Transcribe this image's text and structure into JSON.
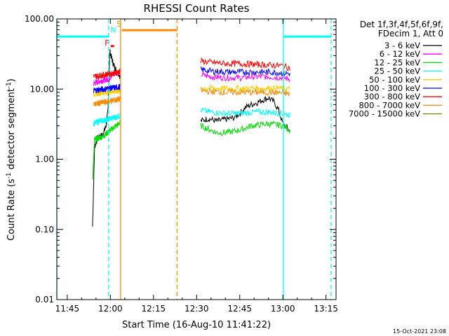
{
  "chart_data": {
    "type": "line",
    "title": "RHESSI Count Rates",
    "xlabel": "Start Time (16-Aug-10 11:41:22)",
    "ylabel_main": "Count Rate (s",
    "ylabel_sup1": "-1",
    "ylabel_mid": " detector segment",
    "ylabel_sup2": "-1",
    "ylabel_end": ")",
    "ylog": true,
    "xlim_minutes": [
      701.37,
      798.5
    ],
    "ylim": [
      0.01,
      100
    ],
    "x_ticks": [
      {
        "value": 705,
        "label": "11:45"
      },
      {
        "value": 720,
        "label": "12:00"
      },
      {
        "value": 735,
        "label": "12:15"
      },
      {
        "value": 750,
        "label": "12:30"
      },
      {
        "value": 765,
        "label": "12:45"
      },
      {
        "value": 780,
        "label": "13:00"
      },
      {
        "value": 795,
        "label": "13:15"
      }
    ],
    "y_ticks": [
      {
        "value": 0.01,
        "label": "0.01"
      },
      {
        "value": 0.1,
        "label": "0.10"
      },
      {
        "value": 1,
        "label": "1.00"
      },
      {
        "value": 10,
        "label": "10.00"
      },
      {
        "value": 100,
        "label": "100.00"
      }
    ],
    "legend": {
      "placement": "right",
      "header1": "Det 1f,3f,4f,5f,6f,9f,",
      "header2": "FDecim 1, Att 0",
      "entries": [
        {
          "label": "3 - 6 keV",
          "color": "#000000"
        },
        {
          "label": "6 - 12 keV",
          "color": "#ff00ff"
        },
        {
          "label": "12 - 25 keV",
          "color": "#00dd00"
        },
        {
          "label": "25 - 50 keV",
          "color": "#00ffff"
        },
        {
          "label": "50 - 100 keV",
          "color": "#ffcc00"
        },
        {
          "label": "100 - 300 keV",
          "color": "#0000ff"
        },
        {
          "label": "300 - 800 keV",
          "color": "#ff0000"
        },
        {
          "label": "800 - 7000 keV",
          "color": "#ff8800"
        },
        {
          "label": "7000 - 15000 keV",
          "color": "#808000"
        }
      ]
    },
    "series": [
      {
        "name": "3 - 6 keV",
        "color": "#000000",
        "segments": [
          {
            "x": [
              713.8,
              714.5,
              715.5,
              716.5,
              717.5,
              718.5,
              719.2,
              719.8,
              720.4,
              721.0,
              721.6,
              722.2,
              722.8,
              723.4
            ],
            "y": [
              0.11,
              1.5,
              2.0,
              2.1,
              2.3,
              3.0,
              5.0,
              35,
              28,
              23,
              20,
              18,
              17,
              15
            ]
          },
          {
            "x": [
              751.5,
              754,
              757,
              760,
              763,
              765,
              767,
              769,
              771,
              773,
              775,
              777,
              778.5,
              780,
              781.5,
              782.5
            ],
            "y": [
              3.5,
              3.8,
              3.5,
              3.7,
              3.9,
              4.5,
              5.5,
              6.0,
              6.4,
              7.0,
              7.5,
              6.5,
              5.0,
              3.2,
              2.8,
              2.5
            ]
          }
        ]
      },
      {
        "name": "6 - 12 keV",
        "color": "#ff00ff",
        "segments": [
          {
            "x": [
              714.2,
              715,
              716.5,
              718,
              719.5,
              720.5,
              722,
              723.4
            ],
            "y": [
              12,
              12.5,
              13,
              13.5,
              14,
              16,
              17,
              18
            ]
          },
          {
            "x": [
              751.5,
              755,
              760,
              765,
              770,
              775,
              780,
              782.5
            ],
            "y": [
              16,
              15,
              14.5,
              14.5,
              15,
              15,
              14.5,
              14
            ]
          }
        ]
      },
      {
        "name": "12 - 25 keV",
        "color": "#00dd00",
        "segments": [
          {
            "x": [
              713.8,
              714.5,
              716,
              718,
              720,
              722,
              723.4
            ],
            "y": [
              0.5,
              1.9,
              2.0,
              2.2,
              2.6,
              3.0,
              3.3
            ]
          },
          {
            "x": [
              751.5,
              754,
              757,
              760,
              763,
              766,
              769,
              772,
              775,
              778,
              780,
              782.5
            ],
            "y": [
              3.0,
              2.7,
              2.4,
              2.4,
              2.5,
              2.7,
              3.0,
              3.1,
              3.2,
              3.1,
              3.0,
              2.6
            ]
          }
        ]
      },
      {
        "name": "25 - 50 keV",
        "color": "#00ffff",
        "segments": [
          {
            "x": [
              714.2,
              716,
              718,
              720,
              722,
              723.4
            ],
            "y": [
              3.2,
              3.5,
              3.6,
              3.8,
              4.0,
              4.2
            ]
          },
          {
            "x": [
              751.5,
              755,
              760,
              765,
              770,
              775,
              780,
              782.5
            ],
            "y": [
              5.0,
              4.7,
              4.5,
              4.5,
              4.7,
              4.7,
              4.5,
              4.3
            ]
          }
        ]
      },
      {
        "name": "50 - 100 keV",
        "color": "#ffcc00",
        "segments": [
          {
            "x": [
              714.2,
              716,
              718,
              720,
              722,
              723.4
            ],
            "y": [
              8.5,
              8.8,
              9.0,
              9.2,
              9.3,
              9.5
            ]
          },
          {
            "x": [
              751.5,
              755,
              760,
              765,
              770,
              775,
              780,
              782.5
            ],
            "y": [
              10.5,
              10.3,
              10.2,
              10.2,
              10.3,
              10.3,
              10.2,
              10.0
            ]
          }
        ]
      },
      {
        "name": "100 - 300 keV",
        "color": "#0000ff",
        "segments": [
          {
            "x": [
              714.2,
              716,
              718,
              720,
              722,
              723.4
            ],
            "y": [
              9.5,
              9.8,
              10.0,
              10.3,
              10.5,
              10.8
            ]
          },
          {
            "x": [
              751.5,
              755,
              760,
              765,
              770,
              775,
              780,
              782.5
            ],
            "y": [
              19,
              18,
              17.5,
              17.5,
              17.5,
              17.5,
              17,
              16.5
            ]
          }
        ]
      },
      {
        "name": "300 - 800 keV",
        "color": "#ff0000",
        "segments": [
          {
            "x": [
              714.2,
              716,
              718,
              720,
              722,
              723.4
            ],
            "y": [
              15,
              15.5,
              16,
              16.5,
              17,
              18
            ]
          },
          {
            "x": [
              751.5,
              755,
              760,
              765,
              770,
              775,
              780,
              782.5
            ],
            "y": [
              25,
              24,
              23,
              23,
              22.5,
              22,
              21.5,
              20
            ]
          }
        ]
      },
      {
        "name": "800 - 7000 keV",
        "color": "#ff8800",
        "segments": [
          {
            "x": [
              714.2,
              716,
              718,
              720,
              722,
              723.4
            ],
            "y": [
              6.0,
              6.3,
              6.5,
              6.8,
              7.0,
              7.2
            ]
          },
          {
            "x": [
              751.5,
              755,
              760,
              765,
              770,
              775,
              780,
              782.5
            ],
            "y": [
              9.5,
              9.2,
              9.0,
              9.0,
              9.0,
              9.0,
              8.8,
              8.5
            ]
          }
        ]
      }
    ],
    "vertical_markers": [
      {
        "x": 701.37,
        "color": "#00ffff",
        "style": "solid"
      },
      {
        "x": 719.4,
        "color": "#00ffff",
        "style": "dashed"
      },
      {
        "x": 723.55,
        "color": "#ff8800",
        "style": "solid"
      },
      {
        "x": 743.2,
        "color": "#ff8800",
        "style": "dashed"
      },
      {
        "x": 780.2,
        "color": "#00ffff",
        "style": "solid"
      },
      {
        "x": 796.8,
        "color": "#00ffff",
        "style": "dashed"
      }
    ],
    "flag_bars": [
      {
        "x": [
          701.37,
          719.4
        ],
        "y": 56,
        "color": "#00ffff"
      },
      {
        "x": [
          724.0,
          743.2
        ],
        "y": 69,
        "color": "#ff8800"
      },
      {
        "x": [
          780.2,
          796.8
        ],
        "y": 56,
        "color": "#00ffff"
      },
      {
        "x": [
          720.1,
          721.3
        ],
        "y": 41,
        "color": "#ff0000"
      }
    ],
    "annotations": [
      {
        "text": "F",
        "x": 718.8,
        "y": 42,
        "color": "#ff0000"
      },
      {
        "text": "N",
        "x": 721.0,
        "y": 64,
        "color": "#00ffff"
      },
      {
        "text": "S",
        "x": 723.0,
        "y": 78,
        "color": "#ff8800"
      }
    ],
    "footer_date": "15-Oct-2021 23:08"
  }
}
